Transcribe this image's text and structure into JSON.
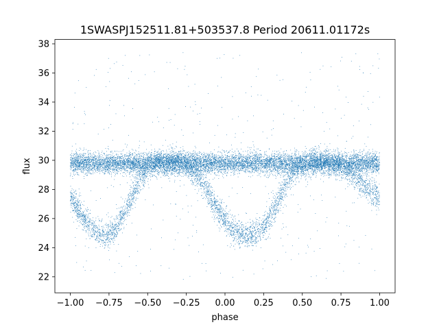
{
  "chart_data": {
    "type": "scatter",
    "title": "1SWASPJ152511.81+503537.8 Period 20611.01172s",
    "xlabel": "phase",
    "ylabel": "flux",
    "xlim": [
      -1.1,
      1.1
    ],
    "ylim": [
      20.9,
      38.3
    ],
    "xticks": [
      -1.0,
      -0.75,
      -0.5,
      -0.25,
      0.0,
      0.25,
      0.5,
      0.75,
      1.0
    ],
    "xtick_labels": [
      "−1.00",
      "−0.75",
      "−0.50",
      "−0.25",
      "0.00",
      "0.25",
      "0.50",
      "0.75",
      "1.00"
    ],
    "yticks": [
      22,
      24,
      26,
      28,
      30,
      32,
      34,
      36,
      38
    ],
    "ytick_labels": [
      "22",
      "24",
      "26",
      "28",
      "30",
      "32",
      "34",
      "36",
      "38"
    ],
    "grid": false,
    "marker_color": "#1f77b4",
    "light_curve": {
      "phase": [
        -1.0,
        -0.95,
        -0.9,
        -0.85,
        -0.8,
        -0.75,
        -0.7,
        -0.65,
        -0.6,
        -0.55,
        -0.5,
        -0.45,
        -0.4,
        -0.35,
        -0.3,
        -0.25,
        -0.2,
        -0.15,
        -0.1,
        -0.05,
        0.0,
        0.05,
        0.1,
        0.15,
        0.2,
        0.25,
        0.3,
        0.35,
        0.4,
        0.45,
        0.5,
        0.55,
        0.6,
        0.65,
        0.7,
        0.75,
        0.8,
        0.85,
        0.9,
        0.95,
        1.0
      ],
      "flux": [
        27.5,
        26.6,
        25.8,
        25.2,
        24.9,
        24.9,
        25.4,
        26.4,
        27.6,
        28.7,
        29.4,
        29.8,
        29.9,
        29.9,
        29.8,
        29.6,
        29.2,
        28.5,
        27.6,
        26.6,
        25.9,
        25.2,
        24.9,
        24.8,
        25.0,
        25.5,
        26.3,
        27.4,
        28.5,
        29.3,
        29.7,
        29.9,
        29.9,
        29.9,
        29.8,
        29.6,
        29.3,
        28.8,
        28.3,
        27.8,
        27.5
      ]
    },
    "baseline_flux": 29.8,
    "eclipse_minima": [
      {
        "phase": -0.78,
        "flux": 24.9
      },
      {
        "phase": 0.22,
        "flux": 24.8
      }
    ],
    "outlier_range": [
      21.8,
      37.4
    ]
  }
}
